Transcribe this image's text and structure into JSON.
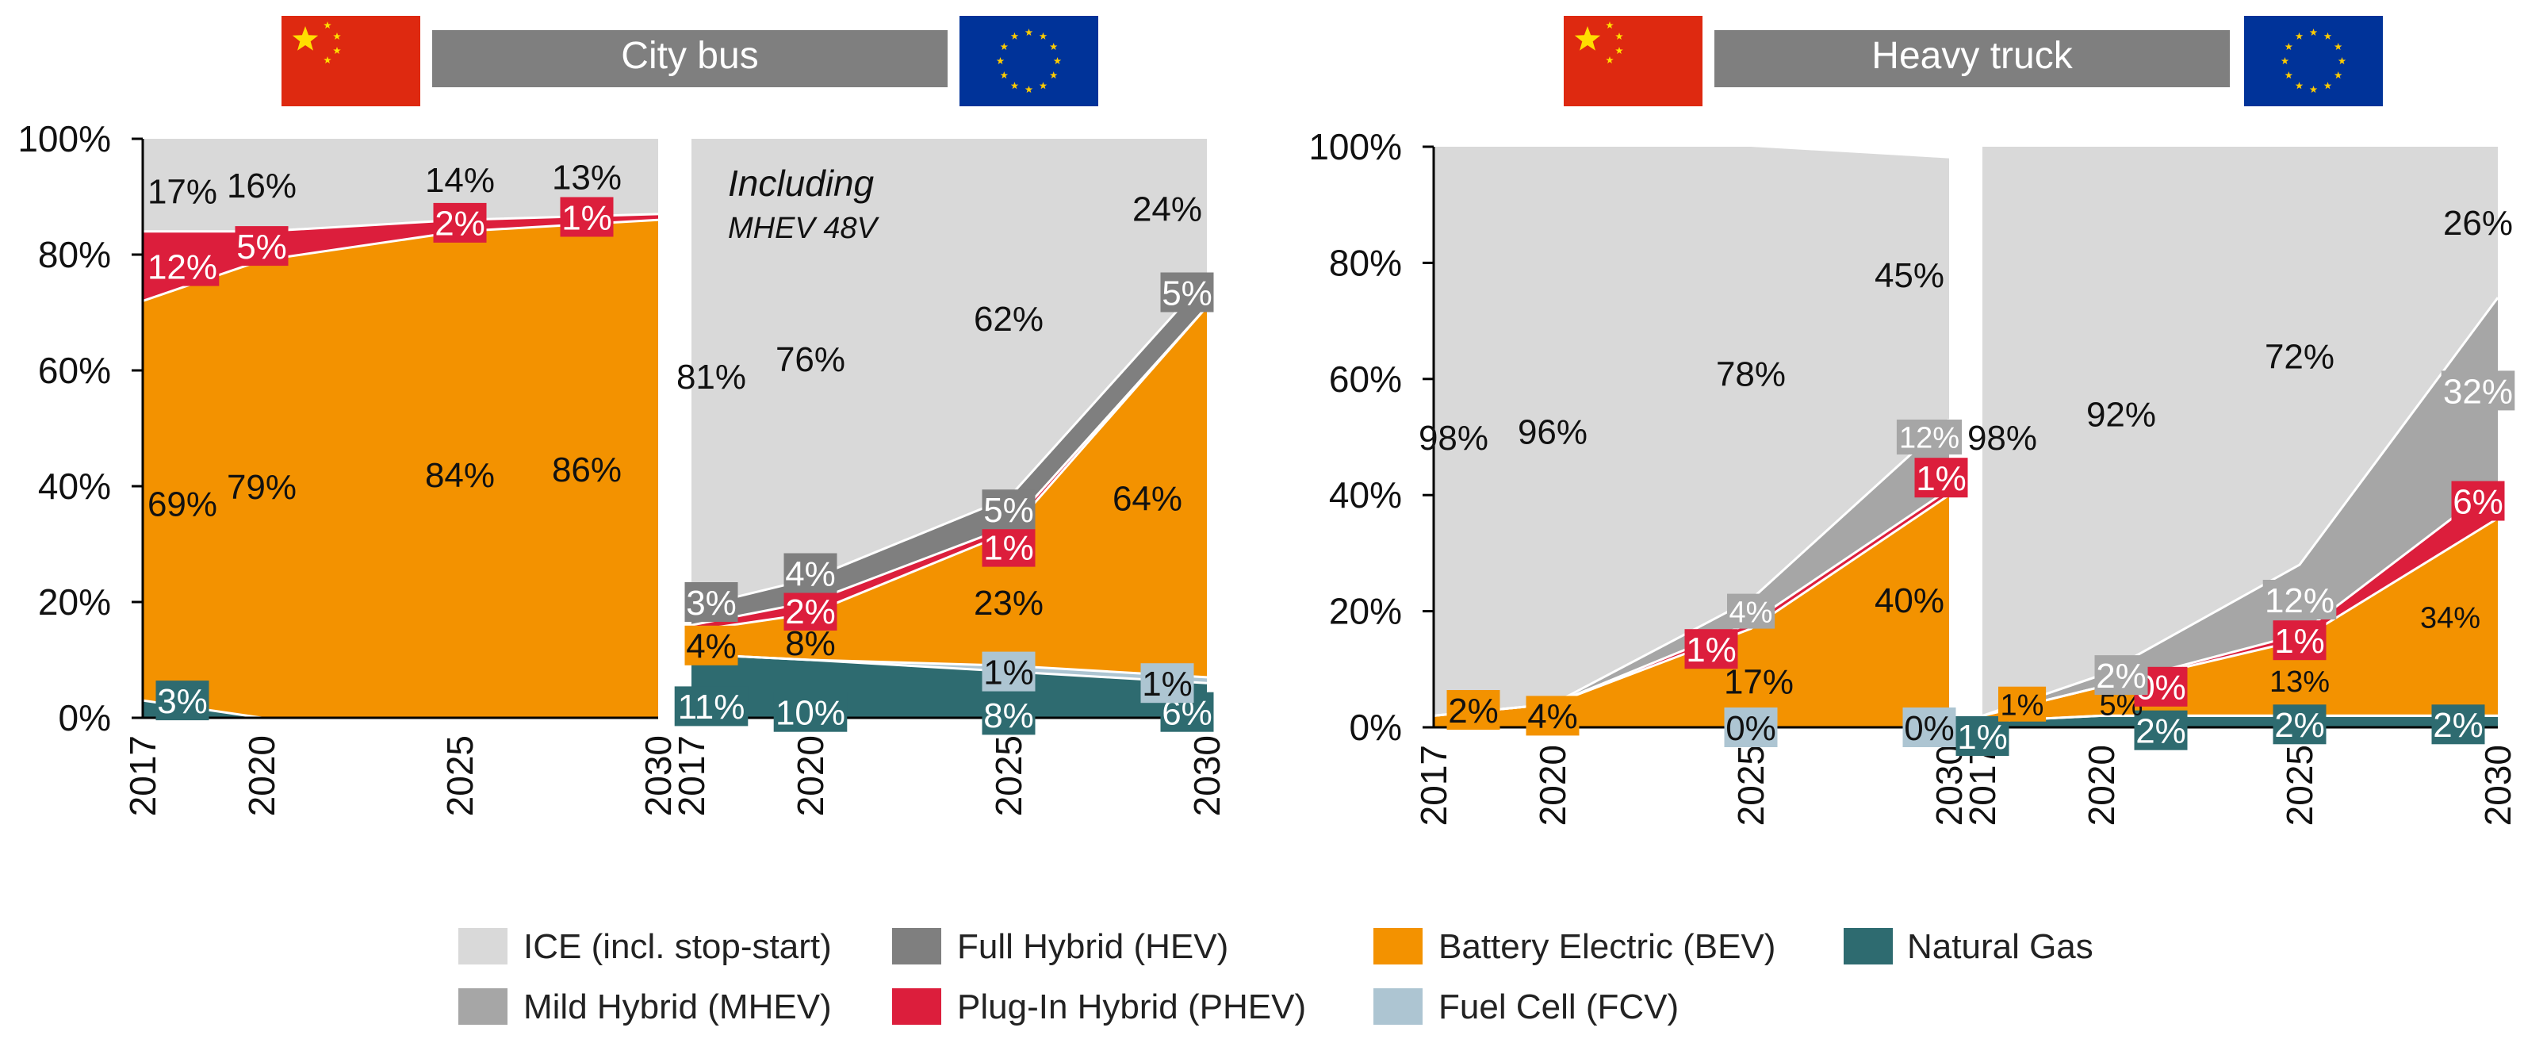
{
  "colors": {
    "ice": "#d9d9d9",
    "hev": "#7f7f7f",
    "mhev": "#a6a6a6",
    "phev": "#dc1e3c",
    "bev": "#f39200",
    "fcv": "#adc5d2",
    "ng": "#2e6b70",
    "header_bar": "#7f7f7f",
    "flag_china": "#de2910",
    "flag_china_star": "#ffde00",
    "flag_eu": "#003399",
    "flag_eu_star": "#ffcc00"
  },
  "groups": [
    {
      "title": "City bus",
      "left_flag": "flag-china",
      "right_flag": "flag-eu"
    },
    {
      "title": "Heavy truck",
      "left_flag": "flag-china",
      "right_flag": "flag-eu"
    }
  ],
  "legend": [
    {
      "key": "ice",
      "label": "ICE (incl. stop-start)"
    },
    {
      "key": "hev",
      "label": "Full Hybrid (HEV)"
    },
    {
      "key": "bev",
      "label": "Battery Electric (BEV)"
    },
    {
      "key": "ng",
      "label": "Natural Gas"
    },
    {
      "key": "mhev",
      "label": "Mild Hybrid (MHEV)"
    },
    {
      "key": "phev",
      "label": "Plug-In Hybrid (PHEV)"
    },
    {
      "key": "fcv",
      "label": "Fuel Cell (FCV)"
    }
  ],
  "chart_data": [
    {
      "id": "china-city-bus",
      "type": "area",
      "stacked": true,
      "region": "China",
      "vehicle": "City bus",
      "x": [
        2017,
        2020,
        2025,
        2030
      ],
      "ylim": [
        0,
        100
      ],
      "yticks": [
        "0%",
        "20%",
        "40%",
        "60%",
        "80%",
        "100%"
      ],
      "xticks": [
        "2017",
        "2020",
        "2025",
        "2030"
      ],
      "series": [
        {
          "key": "ng",
          "name": "Natural Gas",
          "values": [
            3,
            0,
            0,
            0
          ]
        },
        {
          "key": "bev",
          "name": "Battery Electric (BEV)",
          "values": [
            69,
            79,
            84,
            86
          ]
        },
        {
          "key": "phev",
          "name": "Plug-In Hybrid (PHEV)",
          "values": [
            12,
            5,
            2,
            1
          ]
        },
        {
          "key": "ice",
          "name": "ICE (incl. stop-start)",
          "values": [
            17,
            16,
            14,
            13
          ]
        }
      ],
      "labels": [
        {
          "text": "3%",
          "x": 2018.0,
          "y": 3,
          "style": "box",
          "color": "ng"
        },
        {
          "text": "69%",
          "x": 2018.0,
          "y": 37,
          "style": "plain"
        },
        {
          "text": "79%",
          "x": 2020.0,
          "y": 40,
          "style": "plain"
        },
        {
          "text": "84%",
          "x": 2025.0,
          "y": 42,
          "style": "plain"
        },
        {
          "text": "86%",
          "x": 2028.2,
          "y": 43,
          "style": "plain"
        },
        {
          "text": "12%",
          "x": 2018.0,
          "y": 78,
          "style": "box",
          "color": "phev"
        },
        {
          "text": "5%",
          "x": 2020.0,
          "y": 81.5,
          "style": "box",
          "color": "phev"
        },
        {
          "text": "2%",
          "x": 2025.0,
          "y": 85.5,
          "style": "box",
          "color": "phev"
        },
        {
          "text": "1%",
          "x": 2028.2,
          "y": 86.5,
          "style": "box",
          "color": "phev"
        },
        {
          "text": "17%",
          "x": 2018.0,
          "y": 91,
          "style": "plain"
        },
        {
          "text": "16%",
          "x": 2020.0,
          "y": 92,
          "style": "plain"
        },
        {
          "text": "14%",
          "x": 2025.0,
          "y": 93,
          "style": "plain"
        },
        {
          "text": "13%",
          "x": 2028.2,
          "y": 93.5,
          "style": "plain"
        }
      ]
    },
    {
      "id": "eu-city-bus",
      "type": "area",
      "stacked": true,
      "region": "EU",
      "vehicle": "City bus",
      "x": [
        2017,
        2020,
        2025,
        2030
      ],
      "ylim": [
        0,
        100
      ],
      "xticks": [
        "2017",
        "2020",
        "2025",
        "2030"
      ],
      "annotation": [
        "Including",
        "MHEV 48V"
      ],
      "series": [
        {
          "key": "ng",
          "name": "Natural Gas",
          "values": [
            11,
            10,
            8,
            6
          ]
        },
        {
          "key": "fcv",
          "name": "Fuel Cell (FCV)",
          "values": [
            0,
            0,
            1,
            1
          ]
        },
        {
          "key": "bev",
          "name": "Battery Electric (BEV)",
          "values": [
            4,
            8,
            23,
            64
          ]
        },
        {
          "key": "phev",
          "name": "Plug-In Hybrid (PHEV)",
          "values": [
            1,
            2,
            1,
            0
          ]
        },
        {
          "key": "hev",
          "name": "Full Hybrid (HEV)",
          "values": [
            3,
            4,
            5,
            5
          ]
        },
        {
          "key": "ice",
          "name": "ICE (incl. stop-start)",
          "values": [
            81,
            76,
            62,
            24
          ]
        }
      ],
      "labels": [
        {
          "text": "11%",
          "x": 2017.5,
          "y": 2,
          "style": "box",
          "color": "ng"
        },
        {
          "text": "10%",
          "x": 2020.0,
          "y": 1,
          "style": "box",
          "color": "ng"
        },
        {
          "text": "8%",
          "x": 2025.0,
          "y": 0.5,
          "style": "box",
          "color": "ng"
        },
        {
          "text": "6%",
          "x": 2029.5,
          "y": 1,
          "style": "box",
          "color": "ng"
        },
        {
          "text": "1%",
          "x": 2025.0,
          "y": 8,
          "style": "box",
          "color": "fcv"
        },
        {
          "text": "1%",
          "x": 2029.0,
          "y": 6,
          "style": "box",
          "color": "fcv"
        },
        {
          "text": "4%",
          "x": 2017.5,
          "y": 12.5,
          "style": "box",
          "color": "bev"
        },
        {
          "text": "8%",
          "x": 2020.0,
          "y": 13,
          "style": "plain"
        },
        {
          "text": "23%",
          "x": 2025.0,
          "y": 20,
          "style": "plain"
        },
        {
          "text": "64%",
          "x": 2028.5,
          "y": 38,
          "style": "plain"
        },
        {
          "text": "2%",
          "x": 2020.0,
          "y": 18.5,
          "style": "box",
          "color": "phev"
        },
        {
          "text": "1%",
          "x": 2025.0,
          "y": 29.5,
          "style": "box",
          "color": "phev"
        },
        {
          "text": "3%",
          "x": 2017.5,
          "y": 20,
          "style": "box",
          "color": "hev"
        },
        {
          "text": "4%",
          "x": 2020.0,
          "y": 25,
          "style": "box",
          "color": "hev"
        },
        {
          "text": "5%",
          "x": 2025.0,
          "y": 36,
          "style": "box",
          "color": "hev"
        },
        {
          "text": "5%",
          "x": 2029.5,
          "y": 73.5,
          "style": "box",
          "color": "hev"
        },
        {
          "text": "81%",
          "x": 2017.5,
          "y": 59,
          "style": "plain"
        },
        {
          "text": "76%",
          "x": 2020.0,
          "y": 62,
          "style": "plain"
        },
        {
          "text": "62%",
          "x": 2025.0,
          "y": 69,
          "style": "plain"
        },
        {
          "text": "24%",
          "x": 2029.0,
          "y": 88,
          "style": "plain"
        }
      ]
    },
    {
      "id": "china-heavy-truck",
      "type": "area",
      "stacked": true,
      "region": "China",
      "vehicle": "Heavy truck",
      "x": [
        2017,
        2020,
        2025,
        2030
      ],
      "ylim": [
        0,
        100
      ],
      "yticks": [
        "0%",
        "20%",
        "40%",
        "60%",
        "80%",
        "100%"
      ],
      "xticks": [
        "2017",
        "2020",
        "2025",
        "2030"
      ],
      "series": [
        {
          "key": "ng",
          "name": "Natural Gas",
          "values": [
            0,
            0,
            0,
            0
          ]
        },
        {
          "key": "fcv",
          "name": "Fuel Cell (FCV)",
          "values": [
            0,
            0,
            0,
            0
          ]
        },
        {
          "key": "bev",
          "name": "Battery Electric (BEV)",
          "values": [
            2,
            4,
            17,
            40
          ]
        },
        {
          "key": "phev",
          "name": "Plug-In Hybrid (PHEV)",
          "values": [
            0,
            0,
            1,
            1
          ]
        },
        {
          "key": "mhev",
          "name": "Mild Hybrid (MHEV)",
          "values": [
            0,
            0,
            4,
            12
          ]
        },
        {
          "key": "ice",
          "name": "ICE (incl. stop-start)",
          "values": [
            98,
            96,
            78,
            45
          ]
        }
      ],
      "labels": [
        {
          "text": "2%",
          "x": 2018.0,
          "y": 3,
          "style": "box",
          "color": "bev"
        },
        {
          "text": "4%",
          "x": 2020.0,
          "y": 2,
          "style": "box",
          "color": "bev"
        },
        {
          "text": "0%",
          "x": 2025.0,
          "y": 0,
          "style": "box",
          "color": "fcv"
        },
        {
          "text": "0%",
          "x": 2029.5,
          "y": 0,
          "style": "box",
          "color": "fcv"
        },
        {
          "text": "17%",
          "x": 2025.2,
          "y": 8,
          "style": "plain"
        },
        {
          "text": "40%",
          "x": 2029.0,
          "y": 22,
          "style": "plain"
        },
        {
          "text": "1%",
          "x": 2024.0,
          "y": 13.5,
          "style": "box",
          "color": "phev"
        },
        {
          "text": "1%",
          "x": 2029.8,
          "y": 43,
          "style": "box",
          "color": "phev"
        },
        {
          "text": "4%",
          "x": 2025.0,
          "y": 20,
          "style": "box",
          "color": "mhev",
          "small": true
        },
        {
          "text": "12%",
          "x": 2029.5,
          "y": 50,
          "style": "box",
          "color": "mhev",
          "small": true
        },
        {
          "text": "98%",
          "x": 2017.5,
          "y": 50,
          "style": "plain"
        },
        {
          "text": "96%",
          "x": 2020.0,
          "y": 51,
          "style": "plain"
        },
        {
          "text": "78%",
          "x": 2025.0,
          "y": 61,
          "style": "plain"
        },
        {
          "text": "45%",
          "x": 2029.0,
          "y": 78,
          "style": "plain"
        }
      ]
    },
    {
      "id": "eu-heavy-truck",
      "type": "area",
      "stacked": true,
      "region": "EU",
      "vehicle": "Heavy truck",
      "x": [
        2017,
        2020,
        2025,
        2030
      ],
      "ylim": [
        0,
        100
      ],
      "xticks": [
        "2017",
        "2020",
        "2025",
        "2030"
      ],
      "series": [
        {
          "key": "ng",
          "name": "Natural Gas",
          "values": [
            1,
            2,
            2,
            2
          ]
        },
        {
          "key": "fcv",
          "name": "Fuel Cell (FCV)",
          "values": [
            0,
            0,
            0,
            0
          ]
        },
        {
          "key": "bev",
          "name": "Battery Electric (BEV)",
          "values": [
            1,
            5,
            13,
            34
          ]
        },
        {
          "key": "phev",
          "name": "Plug-In Hybrid (PHEV)",
          "values": [
            0,
            0,
            1,
            6
          ]
        },
        {
          "key": "mhev",
          "name": "Mild Hybrid (MHEV)",
          "values": [
            0,
            2,
            12,
            32
          ]
        },
        {
          "key": "ice",
          "name": "ICE (incl. stop-start)",
          "values": [
            98,
            92,
            72,
            26
          ]
        }
      ],
      "labels": [
        {
          "text": "1%",
          "x": 2017.0,
          "y": -1.5,
          "style": "box",
          "color": "ng"
        },
        {
          "text": "2%",
          "x": 2021.5,
          "y": -0.5,
          "style": "box",
          "color": "ng"
        },
        {
          "text": "2%",
          "x": 2025.0,
          "y": 0.5,
          "style": "box",
          "color": "ng"
        },
        {
          "text": "2%",
          "x": 2029.0,
          "y": 0.5,
          "style": "box",
          "color": "ng"
        },
        {
          "text": "1%",
          "x": 2018.0,
          "y": 4,
          "style": "box",
          "color": "bev",
          "small": true
        },
        {
          "text": "5%",
          "x": 2020.5,
          "y": 4,
          "style": "plain",
          "small": true
        },
        {
          "text": "13%",
          "x": 2025.0,
          "y": 8,
          "style": "plain",
          "small": true
        },
        {
          "text": "34%",
          "x": 2028.8,
          "y": 19,
          "style": "plain",
          "small": true
        },
        {
          "text": "0%",
          "x": 2021.5,
          "y": 7,
          "style": "box",
          "color": "phev"
        },
        {
          "text": "1%",
          "x": 2025.0,
          "y": 15,
          "style": "box",
          "color": "phev"
        },
        {
          "text": "6%",
          "x": 2029.5,
          "y": 39,
          "style": "box",
          "color": "phev"
        },
        {
          "text": "2%",
          "x": 2020.5,
          "y": 9,
          "style": "box",
          "color": "mhev"
        },
        {
          "text": "12%",
          "x": 2025.0,
          "y": 22,
          "style": "box",
          "color": "mhev"
        },
        {
          "text": "32%",
          "x": 2029.5,
          "y": 58,
          "style": "box",
          "color": "mhev"
        },
        {
          "text": "98%",
          "x": 2017.5,
          "y": 50,
          "style": "plain"
        },
        {
          "text": "92%",
          "x": 2020.5,
          "y": 54,
          "style": "plain"
        },
        {
          "text": "72%",
          "x": 2025.0,
          "y": 64,
          "style": "plain"
        },
        {
          "text": "26%",
          "x": 2029.5,
          "y": 87,
          "style": "plain"
        }
      ]
    }
  ]
}
